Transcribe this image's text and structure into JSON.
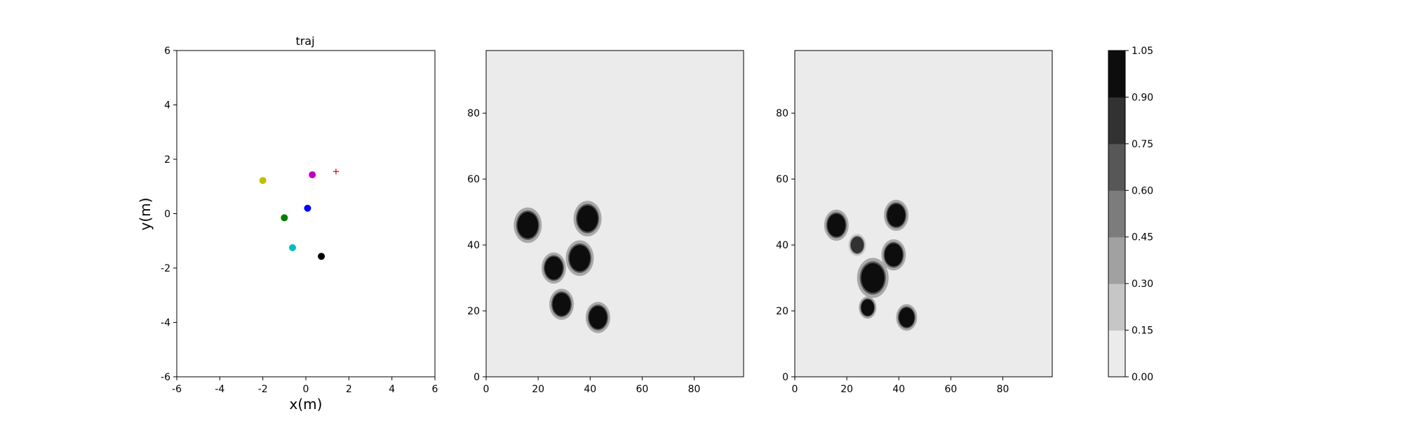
{
  "chart_data": [
    {
      "type": "scatter",
      "title": "traj",
      "xlabel": "x(m)",
      "ylabel": "y(m)",
      "xlim": [
        -6,
        6
      ],
      "ylim": [
        -6,
        6
      ],
      "xticks": [
        -6,
        -4,
        -2,
        0,
        2,
        4,
        6
      ],
      "yticks": [
        -6,
        -4,
        -2,
        0,
        2,
        4,
        6
      ],
      "grid": false,
      "points": [
        {
          "x": -2.0,
          "y": 1.22,
          "color": "#bfbf00",
          "marker": "circle"
        },
        {
          "x": 0.3,
          "y": 1.43,
          "color": "#bf00bf",
          "marker": "circle"
        },
        {
          "x": 0.08,
          "y": 0.2,
          "color": "#0000ff",
          "marker": "circle"
        },
        {
          "x": -1.0,
          "y": -0.15,
          "color": "#008000",
          "marker": "circle"
        },
        {
          "x": -0.62,
          "y": -1.25,
          "color": "#00bfbf",
          "marker": "circle"
        },
        {
          "x": 0.72,
          "y": -1.57,
          "color": "#000000",
          "marker": "circle"
        },
        {
          "x": 1.4,
          "y": 1.55,
          "color": "#ff0000",
          "marker": "plus"
        }
      ]
    },
    {
      "type": "heatmap",
      "xlim": [
        0,
        99
      ],
      "ylim": [
        0,
        99
      ],
      "xticks": [
        0,
        20,
        40,
        60,
        80
      ],
      "yticks": [
        0,
        20,
        40,
        60,
        80
      ],
      "background_value": 0.08,
      "blobs": [
        {
          "x": 16,
          "y": 46,
          "r": 4,
          "value": 1.0
        },
        {
          "x": 39,
          "y": 48,
          "r": 4,
          "value": 1.0
        },
        {
          "x": 26,
          "y": 33,
          "r": 3.5,
          "value": 1.0
        },
        {
          "x": 36,
          "y": 36,
          "r": 4,
          "value": 1.0
        },
        {
          "x": 29,
          "y": 22,
          "r": 3.5,
          "value": 1.0
        },
        {
          "x": 43,
          "y": 18,
          "r": 3.5,
          "value": 1.0
        }
      ]
    },
    {
      "type": "heatmap",
      "xlim": [
        0,
        99
      ],
      "ylim": [
        0,
        99
      ],
      "xticks": [
        0,
        20,
        40,
        60,
        80
      ],
      "yticks": [
        0,
        20,
        40,
        60,
        80
      ],
      "background_value": 0.08,
      "blobs": [
        {
          "x": 16,
          "y": 46,
          "r": 3.5,
          "value": 1.0
        },
        {
          "x": 39,
          "y": 49,
          "r": 3.5,
          "value": 1.0
        },
        {
          "x": 24,
          "y": 40,
          "r": 2.5,
          "value": 0.55
        },
        {
          "x": 38,
          "y": 37,
          "r": 3.5,
          "value": 1.0
        },
        {
          "x": 30,
          "y": 30,
          "r": 4.5,
          "value": 0.95
        },
        {
          "x": 28,
          "y": 21,
          "r": 2.5,
          "value": 1.0
        },
        {
          "x": 43,
          "y": 18,
          "r": 3,
          "value": 1.0
        }
      ]
    },
    {
      "type": "colorbar",
      "levels": [
        "0.00",
        "0.15",
        "0.30",
        "0.45",
        "0.60",
        "0.75",
        "0.90",
        "1.05"
      ],
      "colors": [
        "#ebebeb",
        "#c6c6c6",
        "#a1a1a1",
        "#7c7c7c",
        "#575757",
        "#323232",
        "#0d0d0d"
      ]
    }
  ]
}
